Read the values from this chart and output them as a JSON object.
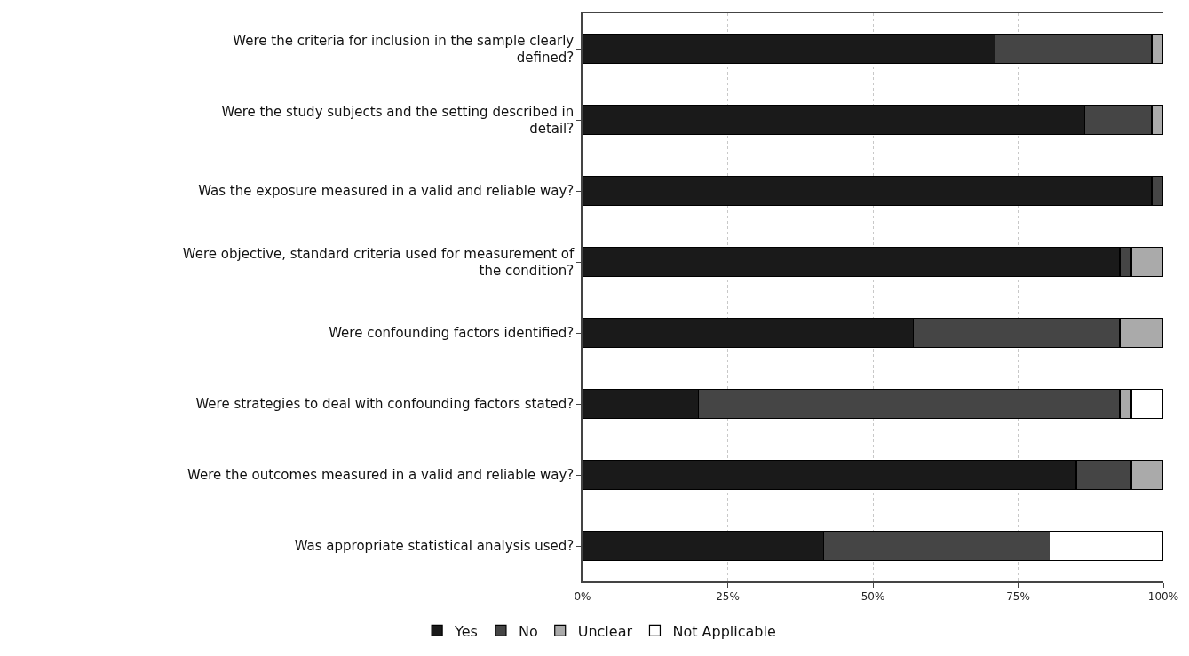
{
  "chart_data": {
    "type": "bar",
    "orientation": "horizontal",
    "stacked": true,
    "categories": [
      "Were the criteria for inclusion in the sample clearly defined?",
      "Were the study subjects and the setting described in detail?",
      "Was the exposure measured in a valid and reliable way?",
      "Were objective, standard criteria used for measurement of the condition?",
      "Were confounding factors identified?",
      "Were strategies to deal with confounding factors stated?",
      "Were the outcomes measured in a valid and reliable way?",
      "Was appropriate statistical analysis used?"
    ],
    "series": [
      {
        "name": "Yes",
        "color": "#1a1a1a",
        "values": [
          71,
          86.5,
          98,
          92.5,
          57,
          20,
          85,
          41.5
        ]
      },
      {
        "name": "No",
        "color": "#454545",
        "values": [
          27,
          11.5,
          2,
          2,
          35.5,
          72.5,
          9.5,
          39
        ]
      },
      {
        "name": "Unclear",
        "color": "#aaaaaa",
        "values": [
          2,
          2,
          null,
          5.5,
          7.5,
          2,
          5.5,
          null
        ]
      },
      {
        "name": "Not Applicable",
        "color": "#ffffff",
        "values": [
          null,
          null,
          null,
          null,
          null,
          5.5,
          null,
          19.5
        ]
      }
    ],
    "xlim": [
      0,
      100
    ],
    "xticks": [
      {
        "value": 0,
        "label": "0%"
      },
      {
        "value": 25,
        "label": "25%"
      },
      {
        "value": 50,
        "label": "50%"
      },
      {
        "value": 75,
        "label": "75%"
      },
      {
        "value": 100,
        "label": "100%"
      }
    ],
    "grid": "x",
    "legend": "bottom"
  }
}
